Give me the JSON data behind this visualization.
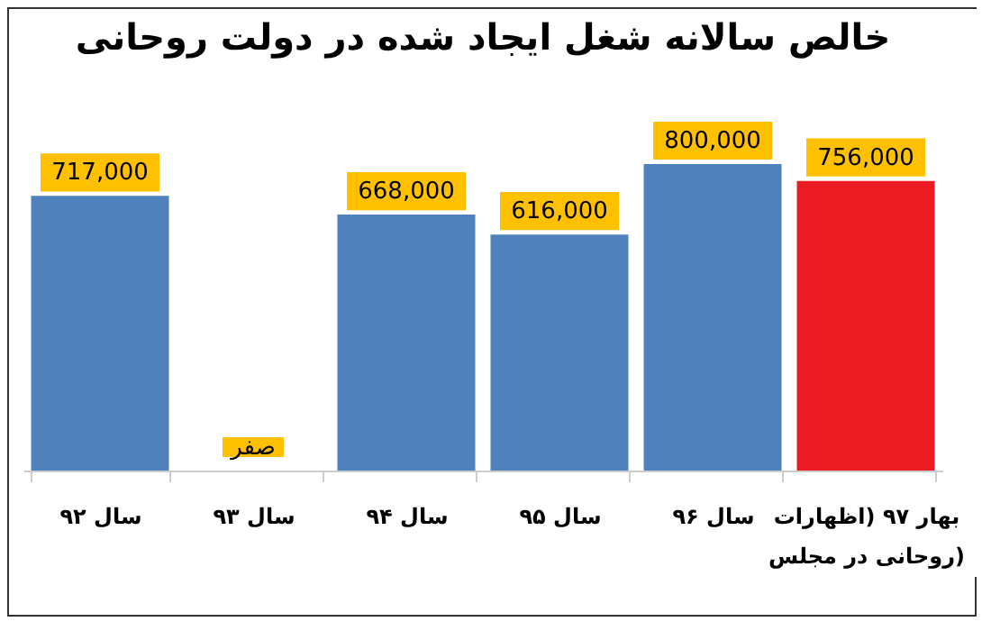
{
  "chart_data": {
    "type": "bar",
    "title": "خالص سالانه شغل ایجاد شده در دولت روحانی",
    "categories": [
      "سال ۹۲",
      "سال ۹۳",
      "سال ۹۴",
      "سال ۹۵",
      "سال ۹۶",
      "بهار ۹۷ (اظهارات روحانی در مجلس)"
    ],
    "values": [
      717000,
      0,
      668000,
      616000,
      800000,
      756000
    ],
    "value_labels": [
      "717,000",
      "صفر",
      "668,000",
      "616,000",
      "800,000",
      "756,000"
    ],
    "colors": [
      "#4f81bd",
      "#4f81bd",
      "#4f81bd",
      "#4f81bd",
      "#4f81bd",
      "#ed1c24"
    ]
  }
}
